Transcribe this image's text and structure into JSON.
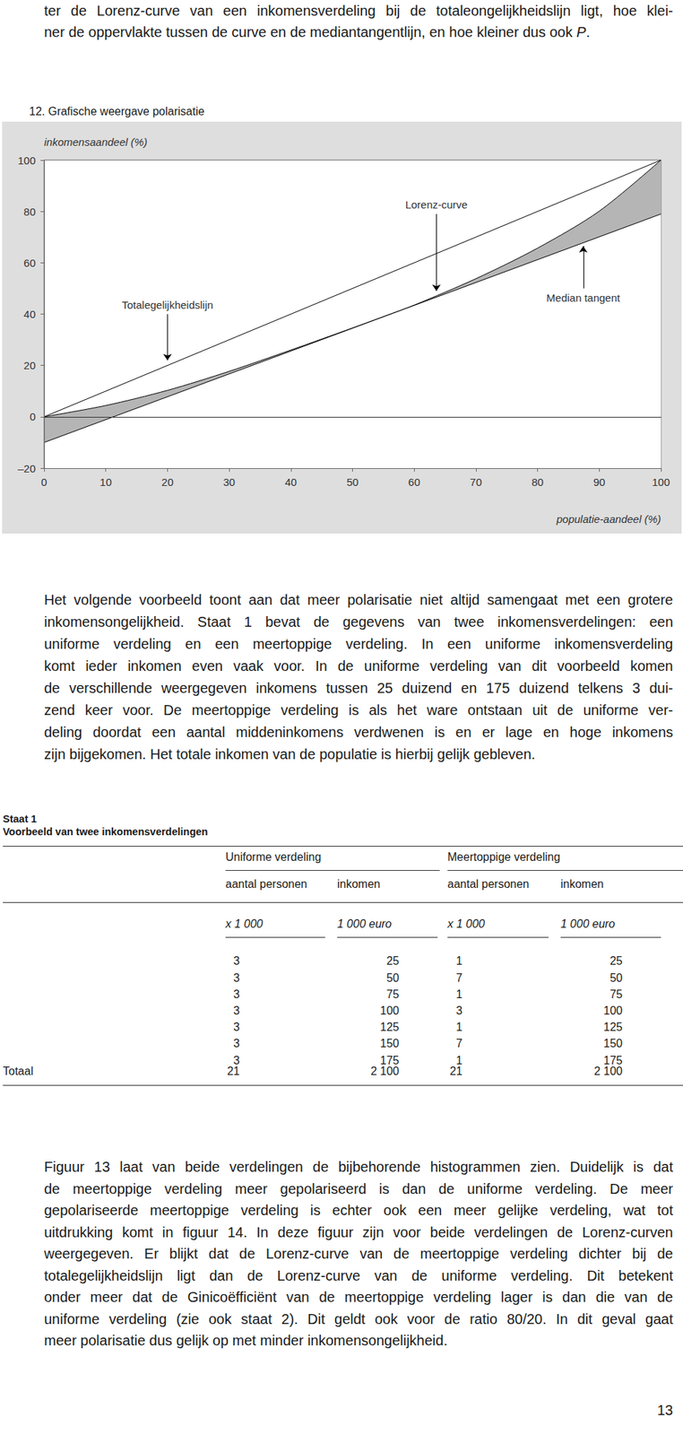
{
  "document": {
    "text_before": {
      "lines": [
        [
          "ter de Lorenz-curve van een inkomensverdeling bij de totaleongelijkheidslijn ligt, hoe klei-"
        ],
        [
          "ner de oppervlakte tussen de curve en de mediantangentlijn, en hoe kleiner dus ook ",
          {
            "text": "P",
            "style": "italic"
          },
          "."
        ]
      ]
    },
    "paragraph_1": {
      "lines": [
        [
          "Het volgende voorbeeld toont aan dat meer polarisatie niet altijd samengaat met een grotere"
        ],
        [
          "inkomensongelijkheid. Staat 1 bevat de gegevens van twee inkomensverdelingen: een"
        ],
        [
          "uniforme verdeling en een meertoppige verdeling. In een uniforme inkomensverdeling"
        ],
        [
          "komt ieder inkomen even vaak voor. In de uniforme verdeling van dit voorbeeld komen"
        ],
        [
          "de verschillende weergegeven inkomens tussen 25 duizend en 175 duizend telkens 3 dui-"
        ],
        [
          "zend keer voor. De meertoppige verdeling is als het ware ontstaan uit de uniforme ver-"
        ],
        [
          "deling doordat een aantal middeninkomens verdwenen is en er lage en hoge inkomens"
        ],
        [
          "zijn bijgekomen. Het totale inkomen van de populatie is hierbij gelijk gebleven."
        ]
      ]
    },
    "table": {
      "title": "Staat 1",
      "subtitle": "Voorbeeld van twee inkomensverdelingen",
      "groups": [
        {
          "title": "Uniforme verdeling",
          "columns": [
            {
              "header": "aantal personen",
              "unit": "x 1 000"
            },
            {
              "header": "inkomen",
              "unit": "1 000 euro"
            }
          ]
        },
        {
          "title": "Meertoppige verdeling",
          "columns": [
            {
              "header": "aantal personen",
              "unit": "x 1 000"
            },
            {
              "header": "inkomen",
              "unit": "1 000 euro"
            }
          ]
        }
      ],
      "rows": [
        [
          3,
          25,
          1,
          25
        ],
        [
          3,
          50,
          7,
          50
        ],
        [
          3,
          75,
          1,
          75
        ],
        [
          3,
          100,
          3,
          100
        ],
        [
          3,
          125,
          1,
          125
        ],
        [
          3,
          150,
          7,
          150
        ],
        [
          3,
          175,
          1,
          175
        ]
      ],
      "total": {
        "label": "Totaal",
        "values": [
          "21",
          "2 100",
          "21",
          "2 100"
        ]
      }
    },
    "paragraph_2": {
      "lines": [
        [
          "Figuur 13 laat van beide verdelingen de bijbehorende histogrammen zien. Duidelijk is dat"
        ],
        [
          "de meertoppige verdeling meer gepolariseerd is dan de uniforme verdeling. De meer"
        ],
        [
          "gepolariseerde meertoppige verdeling is echter ook een meer gelijke verdeling, wat tot"
        ],
        [
          "uitdrukking komt in figuur 14. In deze figuur zijn voor beide verdelingen de Lorenz-curven"
        ],
        [
          "weergegeven. Er blijkt dat de Lorenz-curve van de meertoppige verdeling dichter bij de"
        ],
        [
          "totalegelijkheidslijn ligt dan de Lorenz-curve van de uniforme verdeling. Dit betekent"
        ],
        [
          "onder meer dat de Ginicoëfficiënt van de meertoppige verdeling lager is dan die van de"
        ],
        [
          "uniforme verdeling (zie ook staat 2). Dit geldt ook voor de ratio 80/20. In dit geval gaat"
        ],
        [
          "meer polarisatie dus gelijk op met minder inkomensongelijkheid."
        ]
      ]
    },
    "page_number": "13"
  },
  "chart_data": {
    "type": "line",
    "title": "12. Grafische weergave polarisatie",
    "x_label": "populatie-aandeel (%)",
    "y_label": "inkomensaandeel (%)",
    "xlim": [
      0,
      100
    ],
    "xticks": [
      0,
      10,
      20,
      30,
      40,
      50,
      60,
      70,
      80,
      90,
      100
    ],
    "ylim": [
      -20,
      100
    ],
    "yticks": [
      {
        "value": -20,
        "label": "–20"
      },
      0,
      20,
      40,
      60,
      80,
      100
    ],
    "grid": false,
    "series": [
      {
        "name": "Lorenz-curve",
        "color": "#000000",
        "x": [
          0,
          10,
          20,
          30,
          40,
          50,
          55,
          60,
          70,
          80,
          90,
          100
        ],
        "values": [
          0,
          4.4,
          10.3,
          17.7,
          26,
          34.6,
          39,
          43.5,
          53.8,
          65.7,
          80.1,
          100
        ],
        "annotation": {
          "from": [
            63.6,
            79
          ],
          "to": [
            63.6,
            49
          ]
        }
      },
      {
        "name": "Median tangent",
        "color": "#000000",
        "x": [
          0,
          100
        ],
        "values": [
          -10,
          79
        ],
        "annotation": {
          "from": [
            87.4,
            50
          ],
          "to": [
            87.4,
            66.5
          ]
        }
      },
      {
        "name": "Totalegelijkheidslijn",
        "color": "#000000",
        "x": [
          0,
          100
        ],
        "values": [
          0,
          100
        ],
        "annotation": {
          "from": [
            20,
            40
          ],
          "to": [
            20,
            22
          ]
        }
      }
    ]
  }
}
